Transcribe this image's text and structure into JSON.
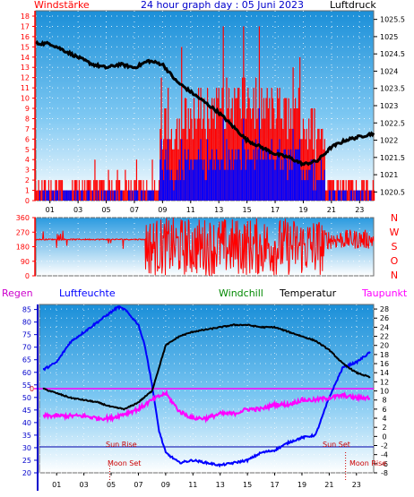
{
  "header": {
    "left_title": "Windstärke",
    "center_title": "24 hour graph day : 05 Juni 2023",
    "right_title": "Luftdruck"
  },
  "colors": {
    "wind": "#ff0000",
    "gust_bars": "#ff0000",
    "wind_bars": "#0000ff",
    "pressure": "#000000",
    "humidity": "#0000ff",
    "temperature": "#000000",
    "dewpoint": "#ff00ff",
    "axis_left": "#ff0000",
    "axis_dir": "#ff0000",
    "grid_dots": "#ffffff"
  },
  "bottom_legend": {
    "rain": "Regen",
    "humidity": "Luftfeuchte",
    "windchill": "Windchill",
    "temperature": "Temperatur",
    "dewpoint": "Taupunkt"
  },
  "annotations": {
    "sun_rise": "Sun Rise",
    "sun_set": "Sun Set",
    "moon_set_1": "Moon Set",
    "moon_set_2": "Moon Rise",
    "zero_marker": "0"
  },
  "chart_data": [
    {
      "type": "bar",
      "ylabel_left": "Windstärke",
      "ylabel_right": "Luftdruck",
      "ylim_left": [
        0,
        18
      ],
      "y_ticks_left": [
        "0",
        "1",
        "2",
        "3",
        "4",
        "5",
        "6",
        "7",
        "8",
        "9",
        "10",
        "11",
        "12",
        "13",
        "14",
        "15",
        "16",
        "17",
        "18"
      ],
      "ylim_right": [
        1020.25,
        1025.75
      ],
      "y_ticks_right": [
        "1020.5",
        "1021",
        "1021.5",
        "1022",
        "1022.5",
        "1023",
        "1023.5",
        "1024",
        "1024.5",
        "1025",
        "1025.5"
      ],
      "x_ticks": [
        "01",
        "03",
        "05",
        "07",
        "09",
        "11",
        "13",
        "15",
        "17",
        "19",
        "21",
        "23"
      ],
      "series": [
        {
          "name": "Luftdruck",
          "x": [
            0,
            1,
            2,
            3,
            4,
            5,
            6,
            7,
            8,
            9,
            10,
            11,
            12,
            13,
            14,
            15,
            16,
            17,
            18,
            19,
            20,
            21,
            22,
            23,
            24
          ],
          "values": [
            1024.8,
            1024.8,
            1024.6,
            1024.4,
            1024.2,
            1024.1,
            1024.2,
            1024.1,
            1024.3,
            1024.2,
            1023.7,
            1023.4,
            1023.1,
            1022.8,
            1022.4,
            1022.0,
            1021.8,
            1021.6,
            1021.5,
            1021.3,
            1021.4,
            1021.8,
            1022.0,
            1022.1,
            1022.2
          ]
        }
      ]
    },
    {
      "type": "scatter",
      "ylabel_right": [
        "N",
        "W",
        "S",
        "O",
        "N"
      ],
      "ylim": [
        0,
        360
      ],
      "y_ticks": [
        "0",
        "90",
        "180",
        "270",
        "360"
      ],
      "x_ticks": [
        "01",
        "03",
        "05",
        "07",
        "09",
        "11",
        "13",
        "15",
        "17",
        "19",
        "21",
        "23"
      ]
    },
    {
      "type": "line",
      "ylim_left": [
        20,
        87
      ],
      "y_ticks_left": [
        "20",
        "25",
        "30",
        "35",
        "40",
        "45",
        "50",
        "55",
        "60",
        "65",
        "70",
        "75",
        "80",
        "85"
      ],
      "ylim_right": [
        -8,
        29
      ],
      "y_ticks_right": [
        "-8",
        "-6",
        "-4",
        "-2",
        "0",
        "2",
        "4",
        "6",
        "8",
        "10",
        "12",
        "14",
        "16",
        "18",
        "20",
        "22",
        "24",
        "26",
        "28"
      ],
      "x_ticks": [
        "01",
        "03",
        "05",
        "07",
        "09",
        "11",
        "13",
        "15",
        "17",
        "19",
        "21",
        "23"
      ],
      "series": [
        {
          "name": "Luftfeuchte",
          "x": [
            0,
            1,
            2,
            3,
            4,
            5,
            5.5,
            6,
            7,
            7.5,
            8,
            8.5,
            9,
            10,
            11,
            12,
            13,
            14,
            15,
            16,
            17,
            18,
            19,
            20,
            21,
            22,
            23,
            24
          ],
          "values": [
            61,
            64,
            72,
            76,
            80,
            84,
            86,
            85,
            79,
            70,
            55,
            37,
            28,
            24,
            25,
            24,
            23,
            24,
            25,
            28,
            29,
            32,
            34,
            35,
            50,
            62,
            64,
            68
          ]
        },
        {
          "name": "Temperatur",
          "x": [
            0,
            1,
            2,
            3,
            4,
            5,
            6,
            7,
            8,
            9,
            10,
            11,
            12,
            13,
            14,
            15,
            16,
            17,
            18,
            19,
            20,
            21,
            22,
            23,
            24
          ],
          "values": [
            10.5,
            9.5,
            8.5,
            8,
            7.5,
            6.5,
            6,
            7.5,
            10,
            20,
            22,
            23,
            23.5,
            24,
            24.5,
            24.5,
            24,
            24,
            23,
            22,
            21,
            19,
            16,
            14,
            13
          ]
        },
        {
          "name": "Taupunkt",
          "x": [
            0,
            1,
            2,
            3,
            4,
            5,
            6,
            7,
            8,
            9,
            10,
            11,
            12,
            13,
            14,
            15,
            16,
            17,
            18,
            19,
            20,
            21,
            22,
            23,
            24
          ],
          "values": [
            4.5,
            4.5,
            4.5,
            4.5,
            4,
            4,
            5,
            6,
            8,
            9.5,
            5.5,
            4,
            4,
            5,
            5,
            6,
            6,
            7,
            7,
            8,
            8,
            8.5,
            9,
            8.5,
            8.5
          ]
        }
      ]
    }
  ]
}
